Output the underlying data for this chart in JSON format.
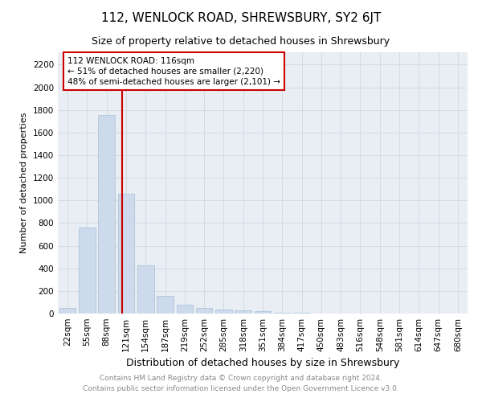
{
  "title": "112, WENLOCK ROAD, SHREWSBURY, SY2 6JT",
  "subtitle": "Size of property relative to detached houses in Shrewsbury",
  "xlabel": "Distribution of detached houses by size in Shrewsbury",
  "ylabel": "Number of detached properties",
  "footnote1": "Contains HM Land Registry data © Crown copyright and database right 2024.",
  "footnote2": "Contains public sector information licensed under the Open Government Licence v3.0.",
  "bar_color": "#ccdaeb",
  "bar_edge_color": "#a8c0d8",
  "grid_color": "#d0d8e0",
  "bg_color": "#e8eef4",
  "annotation_line1": "112 WENLOCK ROAD: 116sqm",
  "annotation_line2": "← 51% of detached houses are smaller (2,220)",
  "annotation_line3": "48% of semi-detached houses are larger (2,101) →",
  "annotation_box_color": "#ffffff",
  "annotation_border_color": "#cc0000",
  "vline_color": "#cc0000",
  "vline_x_idx": 3,
  "categories": [
    "22sqm",
    "55sqm",
    "88sqm",
    "121sqm",
    "154sqm",
    "187sqm",
    "219sqm",
    "252sqm",
    "285sqm",
    "318sqm",
    "351sqm",
    "384sqm",
    "417sqm",
    "450sqm",
    "483sqm",
    "516sqm",
    "548sqm",
    "581sqm",
    "614sqm",
    "647sqm",
    "680sqm"
  ],
  "values": [
    50,
    760,
    1755,
    1060,
    430,
    155,
    80,
    50,
    35,
    25,
    20,
    10,
    5,
    0,
    0,
    0,
    0,
    0,
    0,
    0,
    0
  ],
  "ylim": [
    0,
    2310
  ],
  "yticks": [
    0,
    200,
    400,
    600,
    800,
    1000,
    1200,
    1400,
    1600,
    1800,
    2000,
    2200
  ],
  "title_fontsize": 11,
  "subtitle_fontsize": 9,
  "ylabel_fontsize": 8,
  "xlabel_fontsize": 9,
  "footnote_fontsize": 6.5,
  "tick_fontsize": 7.5
}
